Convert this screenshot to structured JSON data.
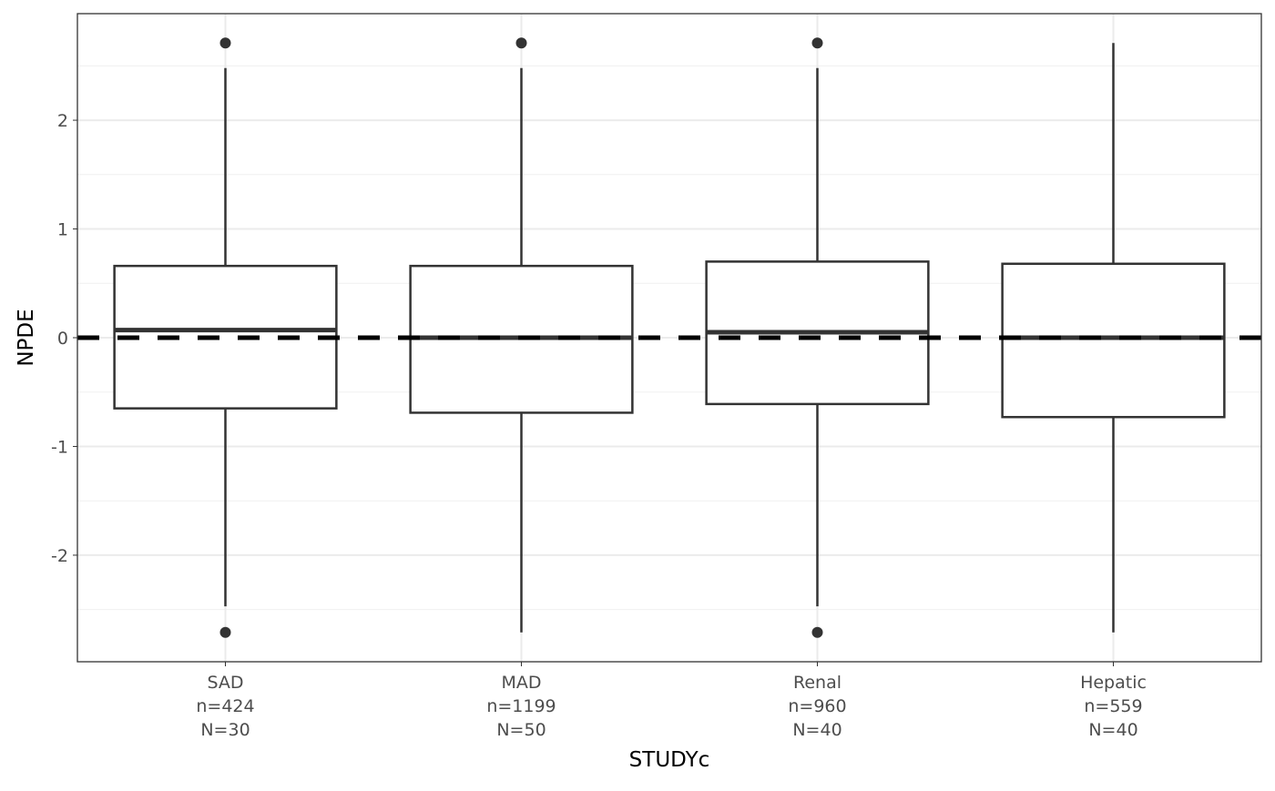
{
  "chart_data": {
    "type": "boxplot",
    "x_label": "STUDYc",
    "y_label": "NPDE",
    "categories": [
      [
        "SAD",
        "n=424",
        "N=30"
      ],
      [
        "MAD",
        "n=1199",
        "N=50"
      ],
      [
        "Renal",
        "n=960",
        "N=40"
      ],
      [
        "Hepatic",
        "n=559",
        "N=40"
      ]
    ],
    "boxes": [
      {
        "whisker_low": -2.47,
        "q1": -0.65,
        "median": 0.07,
        "q3": 0.66,
        "whisker_high": 2.48,
        "outliers": [
          2.71,
          -2.71
        ]
      },
      {
        "whisker_low": -2.71,
        "q1": -0.69,
        "median": 0.0,
        "q3": 0.66,
        "whisker_high": 2.48,
        "outliers": [
          2.71
        ]
      },
      {
        "whisker_low": -2.47,
        "q1": -0.61,
        "median": 0.05,
        "q3": 0.7,
        "whisker_high": 2.48,
        "outliers": [
          2.71,
          -2.71
        ]
      },
      {
        "whisker_low": -2.71,
        "q1": -0.73,
        "median": 0.0,
        "q3": 0.68,
        "whisker_high": 2.71,
        "outliers": []
      }
    ],
    "color": "#333333",
    "reference_line": 0,
    "ylim": [
      -2.98,
      2.98
    ],
    "yticks": [
      -2,
      -1,
      0,
      1,
      2
    ],
    "grid": true
  }
}
